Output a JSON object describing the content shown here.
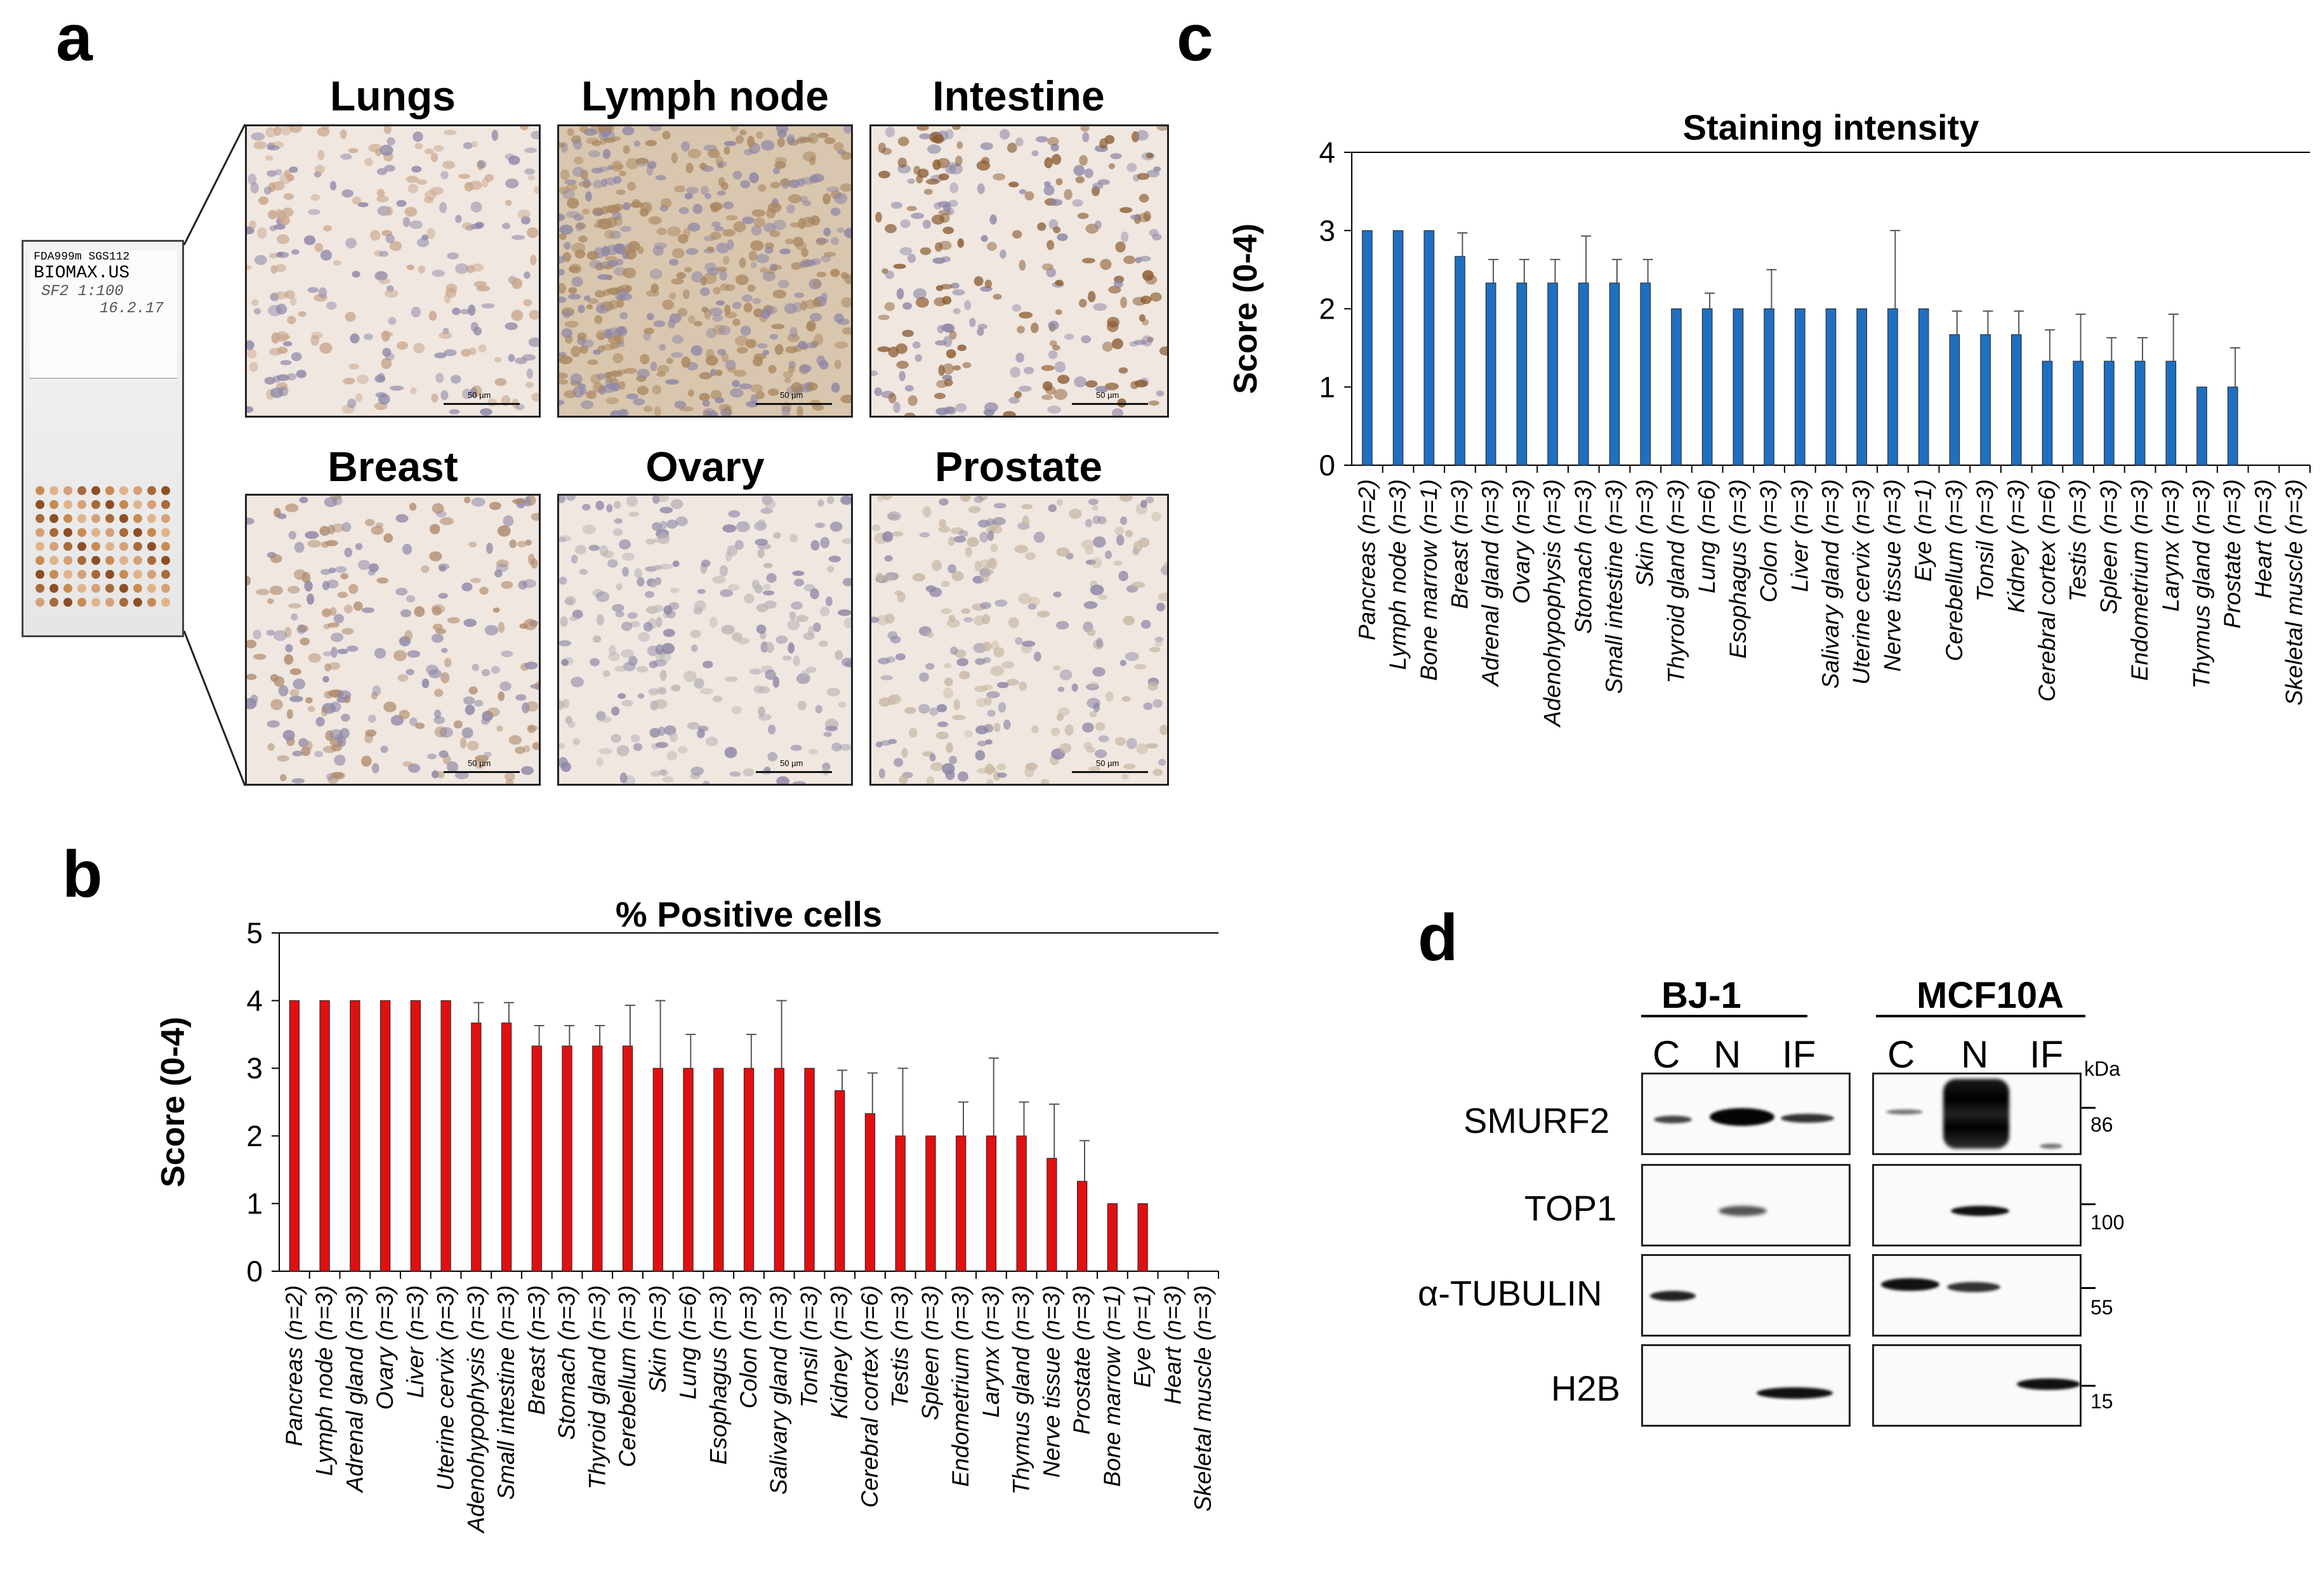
{
  "panels": {
    "a": "a",
    "b": "b",
    "c": "c",
    "d": "d"
  },
  "panel_a": {
    "slide_label_lines": [
      "FDA999m SGS112",
      "BIOMAX.US",
      "SF2 1:100",
      "16.2.17"
    ],
    "tiles": [
      {
        "title": "Lungs",
        "scale": "50 µm",
        "tone": "#c9a489"
      },
      {
        "title": "Lymph node",
        "scale": "50 µm",
        "tone": "#a9865f"
      },
      {
        "title": "Intestine",
        "scale": "50 µm",
        "tone": "#8a5a2f"
      },
      {
        "title": "Breast",
        "scale": "50 µm",
        "tone": "#b08a6c"
      },
      {
        "title": "Ovary",
        "scale": "50 µm",
        "tone": "#b9b4b6"
      },
      {
        "title": "Prostate",
        "scale": "50 µm",
        "tone": "#c8b7a4"
      }
    ]
  },
  "chart_data": [
    {
      "type": "bar",
      "panel": "b",
      "title": "% Positive cells",
      "ylabel": "Score (0-4)",
      "xlabel": "",
      "ylim": [
        0,
        5
      ],
      "yticks": [
        0,
        1,
        2,
        3,
        4,
        5
      ],
      "color": "#e01010",
      "categories": [
        "Pancreas (n=2)",
        "Lymph node (n=3)",
        "Adrenal gland (n=3)",
        "Ovary (n=3)",
        "Liver (n=3)",
        "Uterine cervix (n=3)",
        "Adenohypophysis (n=3)",
        "Small intestine (n=3)",
        "Breast (n=3)",
        "Stomach (n=3)",
        "Thyroid gland (n=3)",
        "Cerebellum (n=3)",
        "Skin (n=3)",
        "Lung (n=6)",
        "Esophagus (n=3)",
        "Colon (n=3)",
        "Salivary gland (n=3)",
        "Tonsil (n=3)",
        "Kidney (n=3)",
        "Cerebral cortex (n=6)",
        "Testis (n=3)",
        "Spleen (n=3)",
        "Endometrium (n=3)",
        "Larynx (n=3)",
        "Thymus gland (n=3)",
        "Nerve tissue (n=3)",
        "Prostate (n=3)",
        "Bone marrow (n=1)",
        "Eye (n=1)",
        "Heart (n=3)",
        "Skeletal muscle (n=3)"
      ],
      "values": [
        4,
        4,
        4,
        4,
        4,
        4,
        3.67,
        3.67,
        3.33,
        3.33,
        3.33,
        3.33,
        3,
        3,
        3,
        3,
        3,
        3,
        2.67,
        2.33,
        2,
        2,
        2,
        2,
        2,
        1.67,
        1.33,
        1,
        1,
        0,
        0
      ],
      "errors": [
        0,
        0,
        0,
        0,
        0,
        0,
        0.3,
        0.3,
        0.3,
        0.3,
        0.3,
        0.6,
        1,
        0.5,
        0,
        0.5,
        1,
        0,
        0.3,
        0.6,
        1,
        0,
        0.5,
        1.15,
        0.5,
        0.8,
        0.6,
        0,
        0,
        0,
        0
      ]
    },
    {
      "type": "bar",
      "panel": "c",
      "title": "Staining intensity",
      "ylabel": "Score (0-4)",
      "xlabel": "",
      "ylim": [
        0,
        4
      ],
      "yticks": [
        0,
        1,
        2,
        3,
        4
      ],
      "color": "#1f6fc0",
      "categories": [
        "Pancreas (n=2)",
        "Lymph node (n=3)",
        "Bone marrow (n=1)",
        "Breast (n=3)",
        "Adrenal gland (n=3)",
        "Ovary (n=3)",
        "Adenohypophysis (n=3)",
        "Stomach (n=3)",
        "Small intestine (n=3)",
        "Skin (n=3)",
        "Thyroid gland (n=3)",
        "Lung (n=6)",
        "Esophagus (n=3)",
        "Colon (n=3)",
        "Liver (n=3)",
        "Salivary gland (n=3)",
        "Uterine cervix (n=3)",
        "Nerve tissue (n=3)",
        "Eye (n=1)",
        "Cerebellum (n=3)",
        "Tonsil (n=3)",
        "Kidney (n=3)",
        "Cerebral cortex (n=6)",
        "Testis (n=3)",
        "Spleen (n=3)",
        "Endometrium (n=3)",
        "Larynx (n=3)",
        "Thymus gland (n=3)",
        "Prostate (n=3)",
        "Heart (n=3)",
        "Skeletal muscle (n=3)"
      ],
      "values": [
        3,
        3,
        3,
        2.67,
        2.33,
        2.33,
        2.33,
        2.33,
        2.33,
        2.33,
        2,
        2,
        2,
        2,
        2,
        2,
        2,
        2,
        2,
        1.67,
        1.67,
        1.67,
        1.33,
        1.33,
        1.33,
        1.33,
        1.33,
        1,
        1,
        0,
        0
      ],
      "errors": [
        0,
        0,
        0,
        0.3,
        0.3,
        0.3,
        0.3,
        0.6,
        0.3,
        0.3,
        0,
        0.2,
        0,
        0.5,
        0,
        0,
        0,
        1,
        0,
        0.3,
        0.3,
        0.3,
        0.4,
        0.6,
        0.3,
        0.3,
        0.6,
        0,
        0.5,
        0,
        0
      ]
    }
  ],
  "panel_d": {
    "cell_lines": [
      "BJ-1",
      "MCF10A"
    ],
    "lanes": [
      "C",
      "N",
      "IF"
    ],
    "kda_label": "kDa",
    "rows": [
      {
        "protein": "SMURF2",
        "marker": "86"
      },
      {
        "protein": "TOP1",
        "marker": "100"
      },
      {
        "protein": "α-TUBULIN",
        "marker": "55"
      },
      {
        "protein": "H2B",
        "marker": "15"
      }
    ]
  }
}
